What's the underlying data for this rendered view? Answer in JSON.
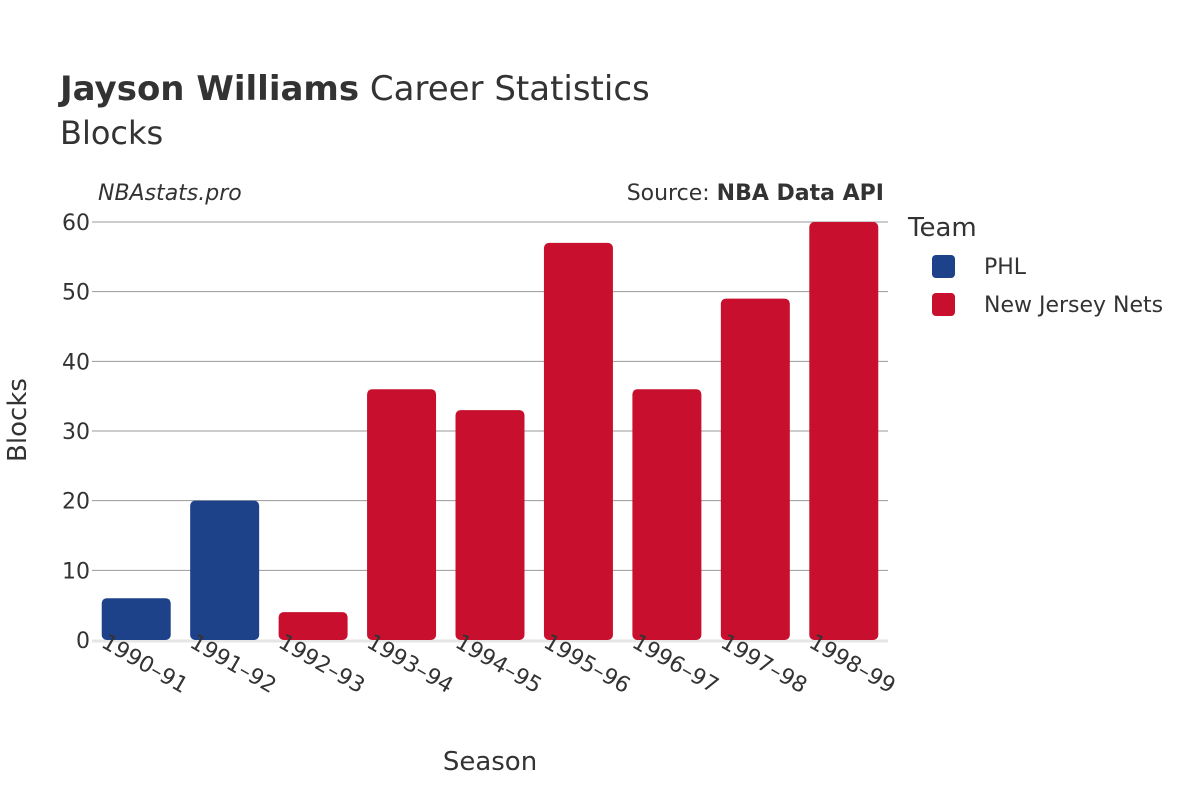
{
  "chart_data": {
    "type": "bar",
    "title_player": "Jayson Williams",
    "title_rest": "Career Statistics",
    "subtitle": "Blocks",
    "credit": "NBAstats.pro",
    "source_prefix": "Source: ",
    "source_name": "NBA Data API",
    "xlabel": "Season",
    "ylabel": "Blocks",
    "ylim": [
      0,
      60
    ],
    "yticks": [
      0,
      10,
      20,
      30,
      40,
      50,
      60
    ],
    "categories": [
      "1990–91",
      "1991–92",
      "1992–93",
      "1993–94",
      "1994–95",
      "1995–96",
      "1996–97",
      "1997–98",
      "1998–99"
    ],
    "values": [
      6,
      20,
      4,
      36,
      33,
      57,
      36,
      49,
      60
    ],
    "teams": [
      "PHL",
      "PHL",
      "New Jersey Nets",
      "New Jersey Nets",
      "New Jersey Nets",
      "New Jersey Nets",
      "New Jersey Nets",
      "New Jersey Nets",
      "New Jersey Nets"
    ],
    "legend": {
      "title": "Team",
      "entries": [
        {
          "name": "PHL",
          "color": "#1d428a"
        },
        {
          "name": "New Jersey Nets",
          "color": "#c8102e"
        }
      ]
    }
  }
}
